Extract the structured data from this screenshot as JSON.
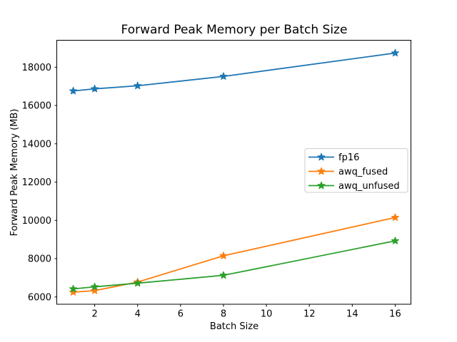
{
  "chart_data": {
    "type": "line",
    "title": "Forward Peak Memory per Batch Size",
    "xlabel": "Batch Size",
    "ylabel": "Forward Peak Memory (MB)",
    "x": [
      1,
      2,
      4,
      8,
      16
    ],
    "series": [
      {
        "name": "fp16",
        "color": "#1f77b4",
        "marker": "star",
        "values": [
          16760,
          16870,
          17030,
          17520,
          18740
        ]
      },
      {
        "name": "awq_fused",
        "color": "#ff7f0e",
        "marker": "star",
        "values": [
          6250,
          6330,
          6780,
          8150,
          10150
        ]
      },
      {
        "name": "awq_unfused",
        "color": "#2ca02c",
        "marker": "star",
        "values": [
          6420,
          6530,
          6720,
          7130,
          8930
        ]
      }
    ],
    "xticks": [
      2,
      4,
      6,
      8,
      10,
      12,
      14,
      16
    ],
    "yticks": [
      6000,
      8000,
      10000,
      12000,
      14000,
      16000,
      18000
    ],
    "xlim": [
      0.25,
      16.75
    ],
    "ylim": [
      5620,
      19370
    ],
    "grid": false,
    "legend_position": "center right",
    "background_color": "#ffffff",
    "spine_color": "#000000",
    "legend_border_color": "#cccccc"
  }
}
